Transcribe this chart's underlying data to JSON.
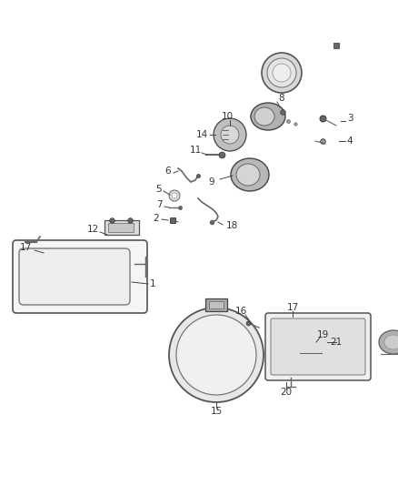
{
  "background_color": "#ffffff",
  "figsize": [
    4.38,
    5.33
  ],
  "dpi": 100
}
